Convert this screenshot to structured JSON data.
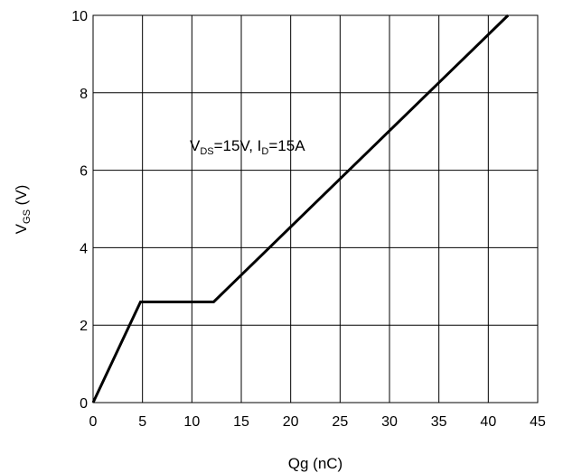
{
  "chart_data": {
    "type": "line",
    "xlabel": "Qg (nC)",
    "ylabel": {
      "main": "V",
      "sub": "GS",
      "unit": " (V)"
    },
    "xlim": [
      0,
      45
    ],
    "ylim": [
      0,
      10
    ],
    "xticks": [
      0,
      5,
      10,
      15,
      20,
      25,
      30,
      35,
      40,
      45
    ],
    "yticks": [
      0,
      2,
      4,
      6,
      8,
      10
    ],
    "grid": true,
    "annotation": {
      "v": "V",
      "ds": "DS",
      "eq1": "=15V, I",
      "d": "D",
      "eq2": "=15A"
    },
    "series": [
      {
        "x": [
          0,
          4.8,
          12.2,
          42
        ],
        "y": [
          0,
          2.6,
          2.6,
          10
        ]
      }
    ]
  }
}
